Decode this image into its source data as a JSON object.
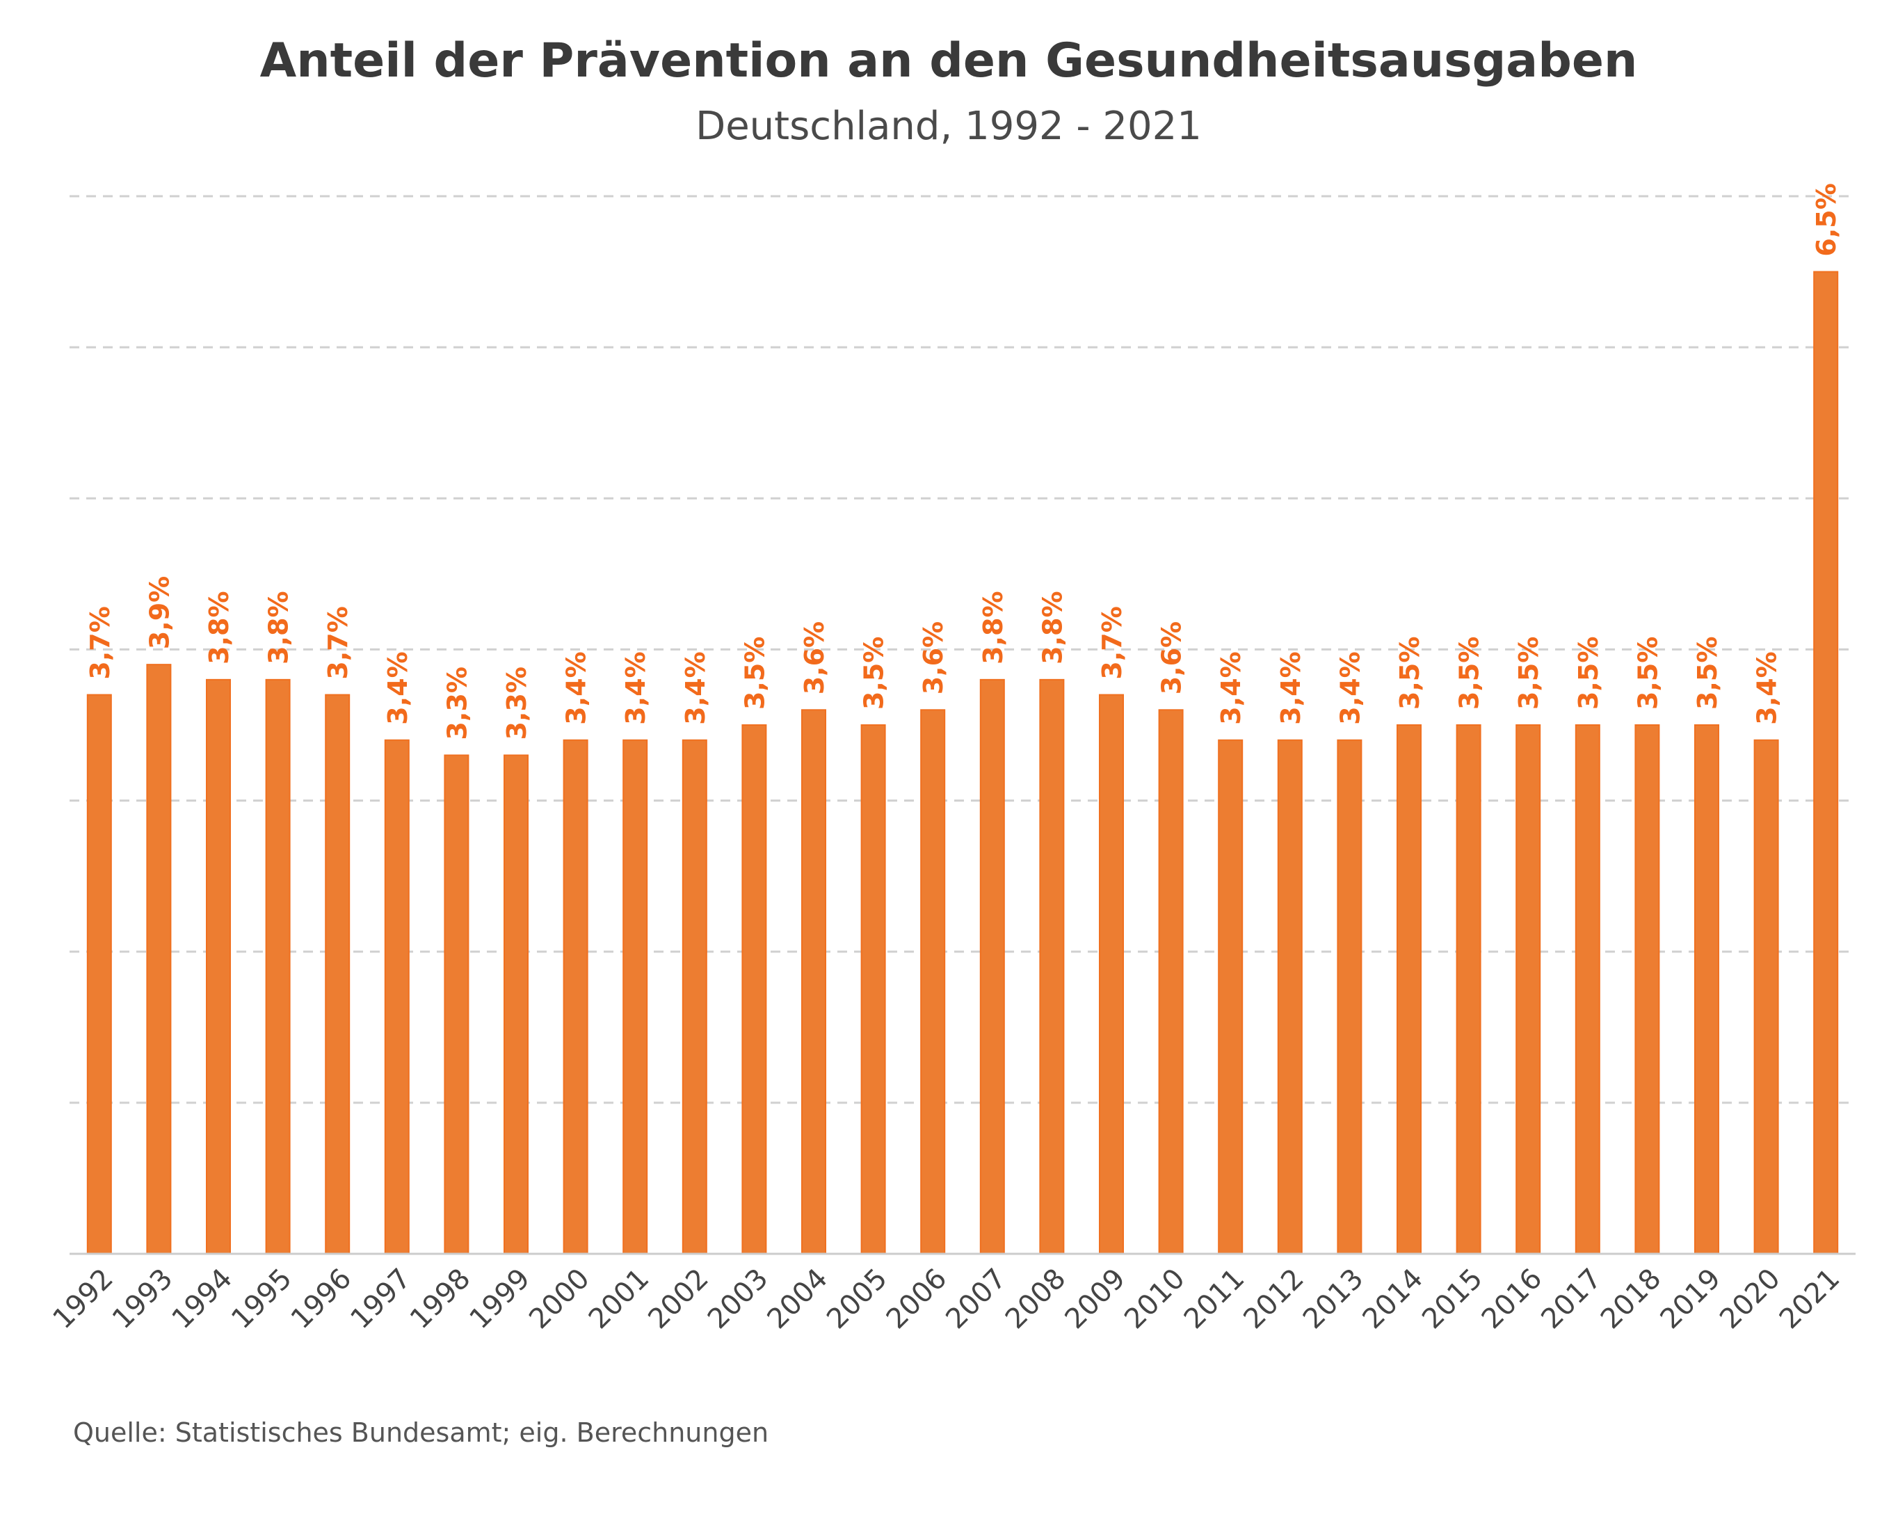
{
  "chart_data": {
    "type": "bar",
    "title": "Anteil der Prävention an den Gesundheitsausgaben",
    "subtitle": "Deutschland, 1992 - 2021",
    "source": "Quelle: Statistisches Bundesamt; eig. Berechnungen",
    "categories": [
      "1992",
      "1993",
      "1994",
      "1995",
      "1996",
      "1997",
      "1998",
      "1999",
      "2000",
      "2001",
      "2002",
      "2003",
      "2004",
      "2005",
      "2006",
      "2007",
      "2008",
      "2009",
      "2010",
      "2011",
      "2012",
      "2013",
      "2014",
      "2015",
      "2016",
      "2017",
      "2018",
      "2019",
      "2020",
      "2021"
    ],
    "values": [
      3.7,
      3.9,
      3.8,
      3.8,
      3.7,
      3.4,
      3.3,
      3.3,
      3.4,
      3.4,
      3.4,
      3.5,
      3.6,
      3.5,
      3.6,
      3.8,
      3.8,
      3.7,
      3.6,
      3.4,
      3.4,
      3.4,
      3.5,
      3.5,
      3.5,
      3.5,
      3.5,
      3.5,
      3.4,
      6.5
    ],
    "data_labels": [
      "3,7%",
      "3,9%",
      "3,8%",
      "3,8%",
      "3,7%",
      "3,4%",
      "3,3%",
      "3,3%",
      "3,4%",
      "3,4%",
      "3,4%",
      "3,5%",
      "3,6%",
      "3,5%",
      "3,6%",
      "3,8%",
      "3,8%",
      "3,7%",
      "3,6%",
      "3,4%",
      "3,4%",
      "3,4%",
      "3,5%",
      "3,5%",
      "3,5%",
      "3,5%",
      "3,5%",
      "3,5%",
      "3,4%",
      "6,5%"
    ],
    "ylim": [
      0,
      7
    ],
    "grid": true,
    "xlabel": "",
    "ylabel": "",
    "colors": {
      "bar": "#ed7d31",
      "bar_edge": "#f07020",
      "label": "#f26a1b",
      "grid": "#d0d0d0",
      "axis": "#cccccc"
    }
  }
}
